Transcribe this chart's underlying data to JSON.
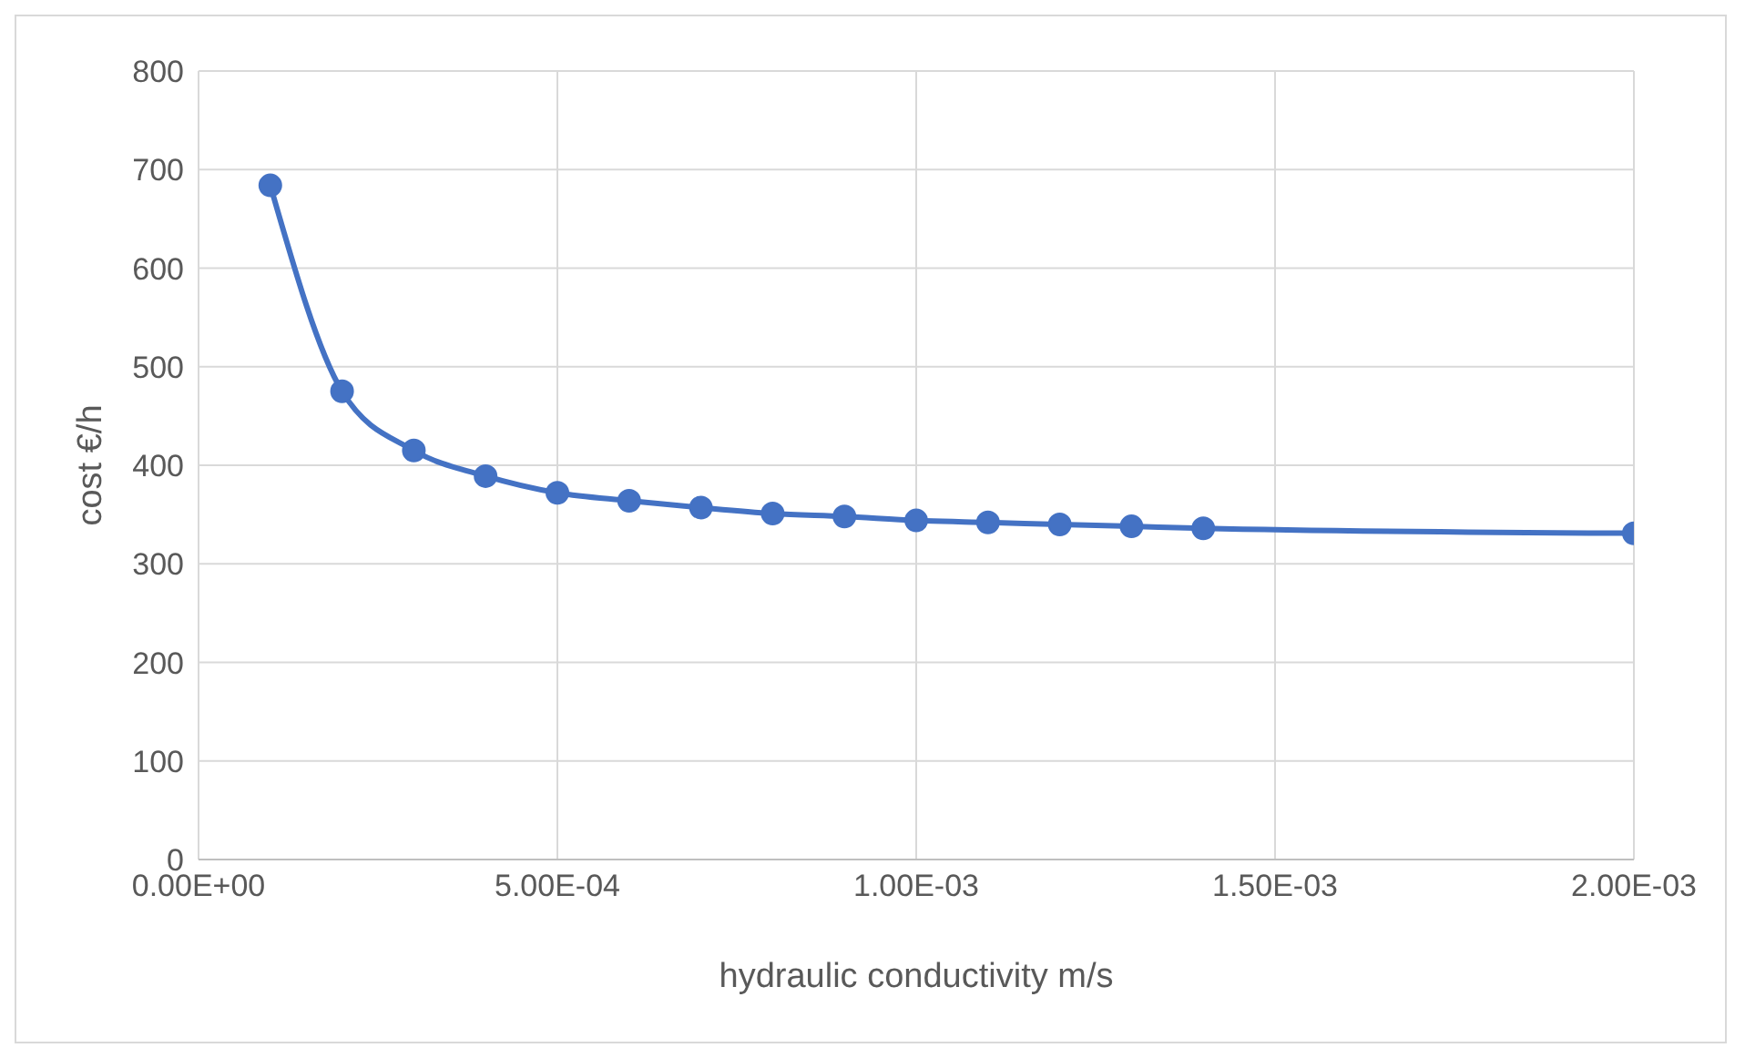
{
  "chart_data": {
    "type": "line",
    "xlabel": "hydraulic conductivity m/s",
    "ylabel": "cost €/h",
    "x": [
      0.0001,
      0.0002,
      0.0003,
      0.0004,
      0.0005,
      0.0006,
      0.0007,
      0.0008,
      0.0009,
      0.001,
      0.0011,
      0.0012,
      0.0013,
      0.0014,
      0.002
    ],
    "series": [
      {
        "color": "#4472c4",
        "values": [
          684,
          475,
          415,
          389,
          372,
          364,
          357,
          351,
          348,
          344,
          342,
          340,
          338,
          336,
          331
        ]
      }
    ],
    "xlim": [
      0,
      0.002
    ],
    "xticks": [
      {
        "value": 0,
        "label": "0.00E+00"
      },
      {
        "value": 0.0005,
        "label": "5.00E-04"
      },
      {
        "value": 0.001,
        "label": "1.00E-03"
      },
      {
        "value": 0.0015,
        "label": "1.50E-03"
      },
      {
        "value": 0.002,
        "label": "2.00E-03"
      }
    ],
    "ylim": [
      0,
      800
    ],
    "yticks": [
      0,
      100,
      200,
      300,
      400,
      500,
      600,
      700,
      800
    ],
    "grid": true,
    "marker": "circle",
    "line_style": "solid"
  }
}
